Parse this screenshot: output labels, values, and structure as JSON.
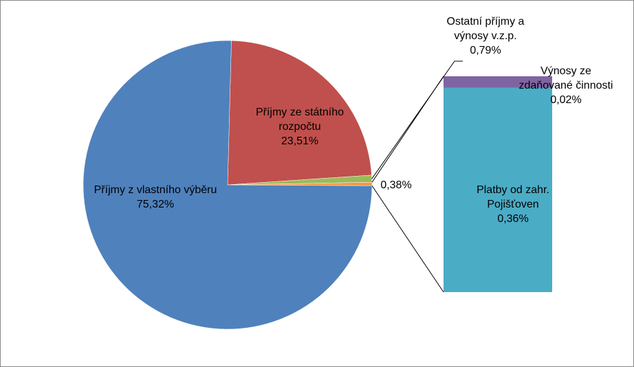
{
  "chart_data": {
    "type": "pie-of-bar",
    "categories": [
      "Příjmy ze státního rozpočtu",
      "Ostatní příjmy a výnosy v.z.p.",
      null,
      "Příjmy z vlastního výběru"
    ],
    "values": [
      23.51,
      0.79,
      0.38,
      75.32
    ],
    "value_labels": [
      "23,51%",
      "0,79%",
      "0,38%",
      "75,32%"
    ],
    "colors": [
      "#c0504d",
      "#9bbb59",
      "#f79646",
      "#4f81bd"
    ],
    "secondary": {
      "categories": [
        "Platby od zahr. Pojišťoven",
        "Výnosy ze zdaňované činnosti"
      ],
      "values": [
        0.36,
        0.02
      ],
      "value_labels": [
        "0,36%",
        "0,02%"
      ],
      "colors": [
        "#4bacc6",
        "#8064a2"
      ]
    }
  }
}
